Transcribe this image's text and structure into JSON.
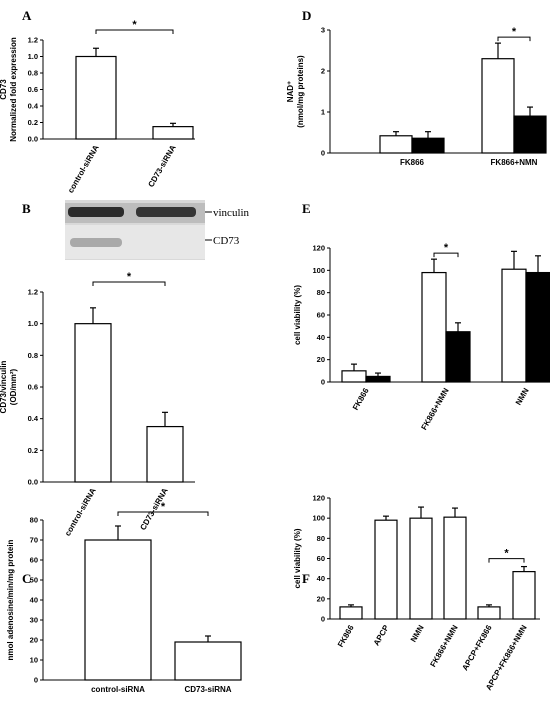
{
  "chart_data": [
    {
      "id": "A",
      "panel_label": "A",
      "type": "bar",
      "ylabel": "CD73",
      "ylabel2": "Normalized fold expression",
      "categories": [
        "control-siRNA",
        "CD73-siRNA"
      ],
      "values": [
        1.0,
        0.15
      ],
      "errors": [
        0.1,
        0.04
      ],
      "ylim": [
        0,
        1.2
      ],
      "yticks": [
        "0.0",
        "0.2",
        "0.4",
        "0.6",
        "0.8",
        "1.0",
        "1.2"
      ],
      "significance": [
        {
          "from": 0,
          "to": 1,
          "label": "*"
        }
      ]
    },
    {
      "id": "B",
      "panel_label": "B",
      "type": "bar",
      "ylabel": "CD73/vinculin",
      "ylabel2": "(OD/mm²)",
      "categories": [
        "control-siRNA",
        "CD73-siRNA"
      ],
      "values": [
        1.0,
        0.35
      ],
      "errors": [
        0.1,
        0.09
      ],
      "ylim": [
        0,
        1.2
      ],
      "yticks": [
        "0.0",
        "0.2",
        "0.4",
        "0.6",
        "0.8",
        "1.0",
        "1.2"
      ],
      "significance": [
        {
          "from": 0,
          "to": 1,
          "label": "*"
        }
      ],
      "blot_labels": [
        "vinculin",
        "CD73"
      ]
    },
    {
      "id": "C",
      "panel_label": "C",
      "type": "bar",
      "ylabel": "nmol adenosine/min/mg protein",
      "ylabel2": "",
      "categories": [
        "control-siRNA",
        "CD73-siRNA"
      ],
      "values": [
        70,
        19
      ],
      "errors": [
        7,
        3
      ],
      "ylim": [
        0,
        80
      ],
      "yticks": [
        "0",
        "10",
        "20",
        "30",
        "40",
        "50",
        "60",
        "70",
        "80"
      ],
      "significance": [
        {
          "from": 0,
          "to": 1,
          "label": "*"
        }
      ]
    },
    {
      "id": "D",
      "panel_label": "D",
      "type": "bar",
      "ylabel": "NAD⁺",
      "ylabel2": "(nmol/mg proteins)",
      "categories": [
        "FK866",
        "FK866+NMN"
      ],
      "series": [
        {
          "values": [
            0.42,
            2.3
          ],
          "errors": [
            0.1,
            0.38
          ],
          "color": "#ffffff"
        },
        {
          "values": [
            0.36,
            0.9
          ],
          "errors": [
            0.16,
            0.22
          ],
          "color": "#000000"
        }
      ],
      "ylim": [
        0,
        3
      ],
      "yticks": [
        "0",
        "1",
        "2",
        "3"
      ],
      "significance": [
        {
          "group": 1,
          "label": "*"
        }
      ]
    },
    {
      "id": "E",
      "panel_label": "E",
      "type": "bar",
      "ylabel": "cell viability (%)",
      "ylabel2": "",
      "categories": [
        "FK866",
        "FK866+NMN",
        "NMN"
      ],
      "series": [
        {
          "values": [
            10,
            98,
            101
          ],
          "errors": [
            6,
            12,
            16
          ],
          "color": "#ffffff"
        },
        {
          "values": [
            5,
            45,
            98
          ],
          "errors": [
            3,
            8,
            15
          ],
          "color": "#000000"
        }
      ],
      "ylim": [
        0,
        120
      ],
      "yticks": [
        "0",
        "20",
        "40",
        "60",
        "80",
        "100",
        "120"
      ],
      "significance": [
        {
          "group": 1,
          "label": "*"
        }
      ]
    },
    {
      "id": "F",
      "panel_label": "F",
      "type": "bar",
      "ylabel": "cell viability (%)",
      "ylabel2": "",
      "categories": [
        "FK866",
        "APCP",
        "NMN",
        "FK866+NMN",
        "APCP+FK866",
        "APCP+FK866+NMN"
      ],
      "values": [
        12,
        98,
        100,
        101,
        12,
        47
      ],
      "errors": [
        2,
        4,
        11,
        9,
        2,
        5
      ],
      "ylim": [
        0,
        120
      ],
      "yticks": [
        "0",
        "20",
        "40",
        "60",
        "80",
        "100",
        "120"
      ],
      "significance": [
        {
          "from": 4,
          "to": 5,
          "label": "*"
        }
      ]
    }
  ]
}
